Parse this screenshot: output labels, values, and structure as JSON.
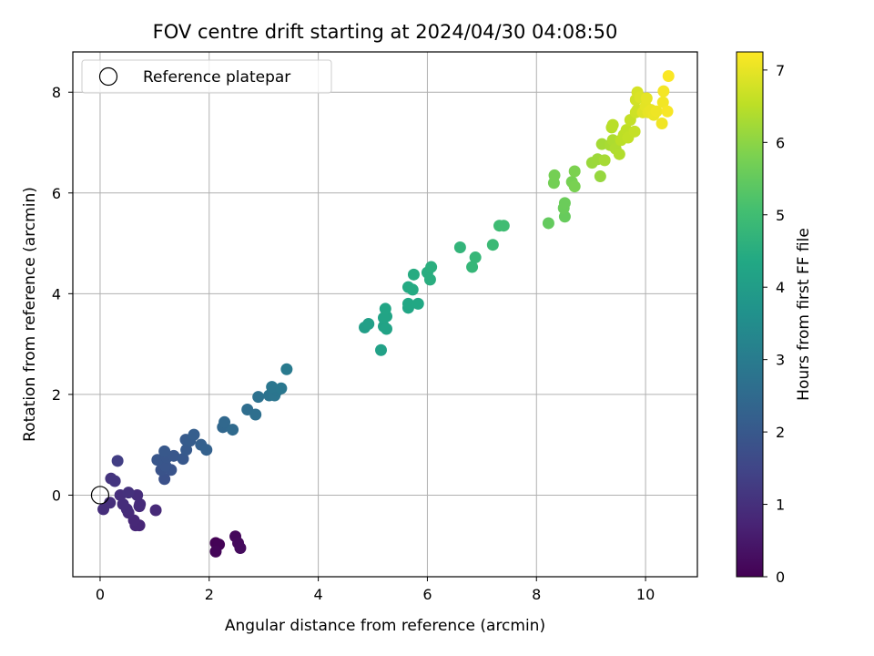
{
  "chart_data": {
    "type": "scatter",
    "title": "FOV centre drift starting at 2024/04/30 04:08:50",
    "xlabel": "Angular distance from reference (arcmin)",
    "ylabel": "Rotation from reference (arcmin)",
    "xlim": [
      -0.5,
      10.95
    ],
    "ylim": [
      -1.62,
      8.8
    ],
    "xticks": [
      0,
      2,
      4,
      6,
      8,
      10
    ],
    "yticks": [
      0,
      2,
      4,
      6,
      8
    ],
    "grid": true,
    "legend": {
      "location": "upper left",
      "entries": [
        "Reference platepar"
      ]
    },
    "reference_point": {
      "x": 0,
      "y": 0,
      "label": "Reference platepar"
    },
    "colormap": "viridis",
    "colorbar": {
      "label": "Hours from first FF file",
      "range": [
        0,
        7.25
      ],
      "ticks": [
        0,
        1,
        2,
        3,
        4,
        5,
        6,
        7
      ]
    },
    "points": [
      {
        "x": 2.12,
        "y": -0.95,
        "c": 0.02
      },
      {
        "x": 2.18,
        "y": -0.98,
        "c": 0.05
      },
      {
        "x": 2.12,
        "y": -1.12,
        "c": 0.08
      },
      {
        "x": 2.48,
        "y": -0.82,
        "c": 0.15
      },
      {
        "x": 2.53,
        "y": -0.95,
        "c": 0.18
      },
      {
        "x": 2.57,
        "y": -1.05,
        "c": 0.2
      },
      {
        "x": 0.72,
        "y": -0.6,
        "c": 0.78
      },
      {
        "x": 0.65,
        "y": -0.6,
        "c": 0.8
      },
      {
        "x": 0.62,
        "y": -0.5,
        "c": 0.82
      },
      {
        "x": 0.52,
        "y": -0.35,
        "c": 0.85
      },
      {
        "x": 1.02,
        "y": -0.3,
        "c": 0.86
      },
      {
        "x": 0.72,
        "y": -0.22,
        "c": 0.88
      },
      {
        "x": 0.73,
        "y": -0.18,
        "c": 0.89
      },
      {
        "x": 0.49,
        "y": -0.28,
        "c": 0.9
      },
      {
        "x": 0.42,
        "y": -0.18,
        "c": 0.92
      },
      {
        "x": 0.68,
        "y": 0.0,
        "c": 0.93
      },
      {
        "x": 0.06,
        "y": -0.28,
        "c": 0.95
      },
      {
        "x": 0.18,
        "y": -0.15,
        "c": 0.97
      },
      {
        "x": 0.37,
        "y": 0.0,
        "c": 0.98
      },
      {
        "x": 0.52,
        "y": 0.05,
        "c": 1.02
      },
      {
        "x": 0.2,
        "y": 0.33,
        "c": 1.08
      },
      {
        "x": 0.27,
        "y": 0.28,
        "c": 1.12
      },
      {
        "x": 0.32,
        "y": 0.68,
        "c": 1.32
      },
      {
        "x": 1.18,
        "y": 0.32,
        "c": 1.8
      },
      {
        "x": 1.12,
        "y": 0.5,
        "c": 1.85
      },
      {
        "x": 1.3,
        "y": 0.5,
        "c": 1.88
      },
      {
        "x": 1.2,
        "y": 0.58,
        "c": 1.9
      },
      {
        "x": 1.05,
        "y": 0.7,
        "c": 1.92
      },
      {
        "x": 1.22,
        "y": 0.75,
        "c": 1.94
      },
      {
        "x": 1.35,
        "y": 0.78,
        "c": 1.96
      },
      {
        "x": 1.18,
        "y": 0.87,
        "c": 1.98
      },
      {
        "x": 1.52,
        "y": 0.72,
        "c": 2.0
      },
      {
        "x": 1.58,
        "y": 0.9,
        "c": 2.05
      },
      {
        "x": 1.57,
        "y": 1.1,
        "c": 2.08
      },
      {
        "x": 1.65,
        "y": 1.08,
        "c": 2.1
      },
      {
        "x": 1.72,
        "y": 1.2,
        "c": 2.15
      },
      {
        "x": 1.85,
        "y": 1.0,
        "c": 2.2
      },
      {
        "x": 1.95,
        "y": 0.9,
        "c": 2.22
      },
      {
        "x": 2.25,
        "y": 1.35,
        "c": 2.42
      },
      {
        "x": 2.28,
        "y": 1.45,
        "c": 2.45
      },
      {
        "x": 2.43,
        "y": 1.3,
        "c": 2.5
      },
      {
        "x": 2.7,
        "y": 1.7,
        "c": 2.6
      },
      {
        "x": 2.85,
        "y": 1.6,
        "c": 2.65
      },
      {
        "x": 2.9,
        "y": 1.95,
        "c": 2.7
      },
      {
        "x": 3.1,
        "y": 1.98,
        "c": 2.75
      },
      {
        "x": 3.2,
        "y": 1.98,
        "c": 2.8
      },
      {
        "x": 3.25,
        "y": 2.08,
        "c": 2.82
      },
      {
        "x": 3.15,
        "y": 2.15,
        "c": 2.85
      },
      {
        "x": 3.32,
        "y": 2.12,
        "c": 2.88
      },
      {
        "x": 3.42,
        "y": 2.5,
        "c": 2.95
      },
      {
        "x": 4.85,
        "y": 3.33,
        "c": 4.05
      },
      {
        "x": 4.92,
        "y": 3.4,
        "c": 4.08
      },
      {
        "x": 5.15,
        "y": 2.88,
        "c": 4.12
      },
      {
        "x": 5.2,
        "y": 3.35,
        "c": 4.15
      },
      {
        "x": 5.25,
        "y": 3.3,
        "c": 4.18
      },
      {
        "x": 5.2,
        "y": 3.52,
        "c": 4.2
      },
      {
        "x": 5.25,
        "y": 3.55,
        "c": 4.22
      },
      {
        "x": 5.23,
        "y": 3.7,
        "c": 4.25
      },
      {
        "x": 5.65,
        "y": 3.72,
        "c": 4.3
      },
      {
        "x": 5.65,
        "y": 3.8,
        "c": 4.32
      },
      {
        "x": 5.83,
        "y": 3.8,
        "c": 4.35
      },
      {
        "x": 5.65,
        "y": 4.13,
        "c": 4.4
      },
      {
        "x": 5.73,
        "y": 4.08,
        "c": 4.42
      },
      {
        "x": 5.75,
        "y": 4.38,
        "c": 4.45
      },
      {
        "x": 6.0,
        "y": 4.42,
        "c": 4.5
      },
      {
        "x": 6.05,
        "y": 4.28,
        "c": 4.52
      },
      {
        "x": 6.07,
        "y": 4.53,
        "c": 4.55
      },
      {
        "x": 6.6,
        "y": 4.92,
        "c": 4.72
      },
      {
        "x": 6.82,
        "y": 4.53,
        "c": 4.78
      },
      {
        "x": 6.88,
        "y": 4.72,
        "c": 4.8
      },
      {
        "x": 7.2,
        "y": 4.97,
        "c": 4.88
      },
      {
        "x": 7.32,
        "y": 5.35,
        "c": 4.95
      },
      {
        "x": 7.4,
        "y": 5.35,
        "c": 4.98
      },
      {
        "x": 8.22,
        "y": 5.4,
        "c": 5.5
      },
      {
        "x": 8.52,
        "y": 5.53,
        "c": 5.55
      },
      {
        "x": 8.5,
        "y": 5.7,
        "c": 5.58
      },
      {
        "x": 8.52,
        "y": 5.8,
        "c": 5.6
      },
      {
        "x": 8.32,
        "y": 6.2,
        "c": 5.7
      },
      {
        "x": 8.33,
        "y": 6.35,
        "c": 5.72
      },
      {
        "x": 8.65,
        "y": 6.22,
        "c": 5.75
      },
      {
        "x": 8.7,
        "y": 6.13,
        "c": 5.78
      },
      {
        "x": 8.7,
        "y": 6.43,
        "c": 5.82
      },
      {
        "x": 9.17,
        "y": 6.33,
        "c": 6.1
      },
      {
        "x": 9.02,
        "y": 6.6,
        "c": 6.15
      },
      {
        "x": 9.12,
        "y": 6.67,
        "c": 6.18
      },
      {
        "x": 9.2,
        "y": 6.97,
        "c": 6.25
      },
      {
        "x": 9.25,
        "y": 6.65,
        "c": 6.28
      },
      {
        "x": 9.35,
        "y": 6.95,
        "c": 6.3
      },
      {
        "x": 9.4,
        "y": 7.05,
        "c": 6.35
      },
      {
        "x": 9.45,
        "y": 6.88,
        "c": 6.38
      },
      {
        "x": 9.52,
        "y": 6.77,
        "c": 6.4
      },
      {
        "x": 9.38,
        "y": 7.3,
        "c": 6.45
      },
      {
        "x": 9.4,
        "y": 7.35,
        "c": 6.48
      },
      {
        "x": 9.55,
        "y": 7.05,
        "c": 6.5
      },
      {
        "x": 9.6,
        "y": 7.15,
        "c": 6.52
      },
      {
        "x": 9.65,
        "y": 7.25,
        "c": 6.55
      },
      {
        "x": 9.68,
        "y": 7.1,
        "c": 6.58
      },
      {
        "x": 9.72,
        "y": 7.45,
        "c": 6.6
      },
      {
        "x": 9.8,
        "y": 7.22,
        "c": 6.62
      },
      {
        "x": 9.82,
        "y": 7.6,
        "c": 6.7
      },
      {
        "x": 9.85,
        "y": 7.65,
        "c": 6.72
      },
      {
        "x": 9.82,
        "y": 7.85,
        "c": 6.75
      },
      {
        "x": 9.85,
        "y": 8.0,
        "c": 6.8
      },
      {
        "x": 9.9,
        "y": 7.9,
        "c": 6.85
      },
      {
        "x": 9.95,
        "y": 7.6,
        "c": 6.9
      },
      {
        "x": 10.0,
        "y": 7.72,
        "c": 6.95
      },
      {
        "x": 10.02,
        "y": 7.88,
        "c": 6.98
      },
      {
        "x": 10.05,
        "y": 7.6,
        "c": 7.0
      },
      {
        "x": 10.1,
        "y": 7.65,
        "c": 7.02
      },
      {
        "x": 10.15,
        "y": 7.55,
        "c": 7.05
      },
      {
        "x": 10.2,
        "y": 7.62,
        "c": 7.08
      },
      {
        "x": 10.3,
        "y": 7.38,
        "c": 7.1
      },
      {
        "x": 10.32,
        "y": 7.8,
        "c": 7.12
      },
      {
        "x": 10.33,
        "y": 8.02,
        "c": 7.15
      },
      {
        "x": 10.4,
        "y": 7.62,
        "c": 7.18
      },
      {
        "x": 10.42,
        "y": 8.32,
        "c": 7.22
      }
    ]
  }
}
